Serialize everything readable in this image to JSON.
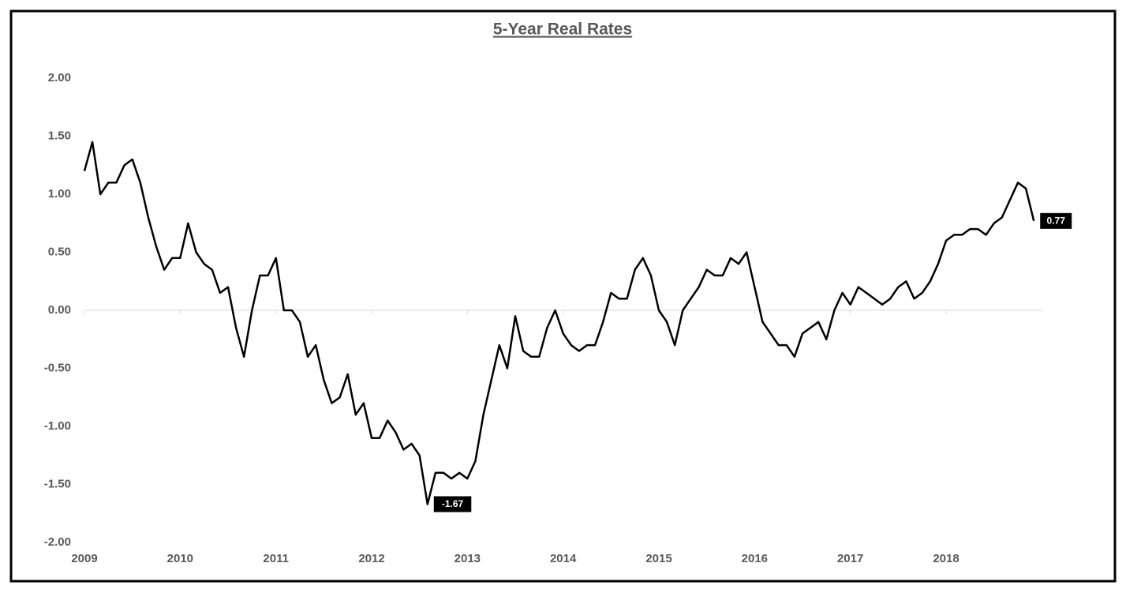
{
  "chart_data": {
    "type": "line",
    "title": "5-Year Real Rates",
    "categories": [
      "2009",
      null,
      null,
      null,
      null,
      null,
      null,
      null,
      null,
      null,
      null,
      null,
      "2010",
      null,
      null,
      null,
      null,
      null,
      null,
      null,
      null,
      null,
      null,
      null,
      "2011",
      null,
      null,
      null,
      null,
      null,
      null,
      null,
      null,
      null,
      null,
      null,
      "2012",
      null,
      null,
      null,
      null,
      null,
      null,
      null,
      null,
      null,
      null,
      null,
      "2013",
      null,
      null,
      null,
      null,
      null,
      null,
      null,
      null,
      null,
      null,
      null,
      "2014",
      null,
      null,
      null,
      null,
      null,
      null,
      null,
      null,
      null,
      null,
      null,
      "2015",
      null,
      null,
      null,
      null,
      null,
      null,
      null,
      null,
      null,
      null,
      null,
      "2016",
      null,
      null,
      null,
      null,
      null,
      null,
      null,
      null,
      null,
      null,
      null,
      "2017",
      null,
      null,
      null,
      null,
      null,
      null,
      null,
      null,
      null,
      null,
      null,
      "2018",
      null,
      null,
      null,
      null,
      null,
      null,
      null,
      null,
      null,
      null,
      null
    ],
    "series": [
      {
        "name": "5-Year Real Rates",
        "color": "#000000",
        "values": [
          1.2,
          1.45,
          1.0,
          1.1,
          1.1,
          1.25,
          1.3,
          1.1,
          0.8,
          0.55,
          0.35,
          0.45,
          0.45,
          0.75,
          0.5,
          0.4,
          0.35,
          0.15,
          0.2,
          -0.15,
          -0.4,
          0.0,
          0.3,
          0.3,
          0.45,
          0.0,
          0.0,
          -0.1,
          -0.4,
          -0.3,
          -0.6,
          -0.8,
          -0.75,
          -0.55,
          -0.9,
          -0.8,
          -1.1,
          -1.1,
          -0.95,
          -1.05,
          -1.2,
          -1.15,
          -1.25,
          -1.67,
          -1.4,
          -1.4,
          -1.45,
          -1.4,
          -1.45,
          -1.3,
          -0.9,
          -0.6,
          -0.3,
          -0.5,
          -0.05,
          -0.35,
          -0.4,
          -0.4,
          -0.15,
          0.0,
          -0.2,
          -0.3,
          -0.35,
          -0.3,
          -0.3,
          -0.1,
          0.15,
          0.1,
          0.1,
          0.35,
          0.45,
          0.3,
          0.0,
          -0.1,
          -0.3,
          0.0,
          0.1,
          0.2,
          0.35,
          0.3,
          0.3,
          0.45,
          0.4,
          0.5,
          0.2,
          -0.1,
          -0.2,
          -0.3,
          -0.3,
          -0.4,
          -0.2,
          -0.15,
          -0.1,
          -0.25,
          0.0,
          0.15,
          0.05,
          0.2,
          0.15,
          0.1,
          0.05,
          0.1,
          0.2,
          0.25,
          0.1,
          0.15,
          0.25,
          0.4,
          0.6,
          0.65,
          0.65,
          0.7,
          0.7,
          0.65,
          0.75,
          0.8,
          0.95,
          1.1,
          1.05,
          0.77
        ]
      }
    ],
    "labeled_points": [
      43,
      119
    ],
    "ylim": [
      -2,
      2
    ],
    "yticks": [
      {
        "value": -2,
        "label": "-2.00"
      },
      {
        "value": -1.5,
        "label": "-1.50"
      },
      {
        "value": -1,
        "label": "-1.00"
      },
      {
        "value": -0.5,
        "label": "-0.50"
      },
      {
        "value": 0,
        "label": "0.00"
      },
      {
        "value": 0.5,
        "label": "0.50"
      },
      {
        "value": 1,
        "label": "1.00"
      },
      {
        "value": 1.5,
        "label": "1.50"
      },
      {
        "value": 2,
        "label": "2.00"
      }
    ],
    "grid": false
  }
}
